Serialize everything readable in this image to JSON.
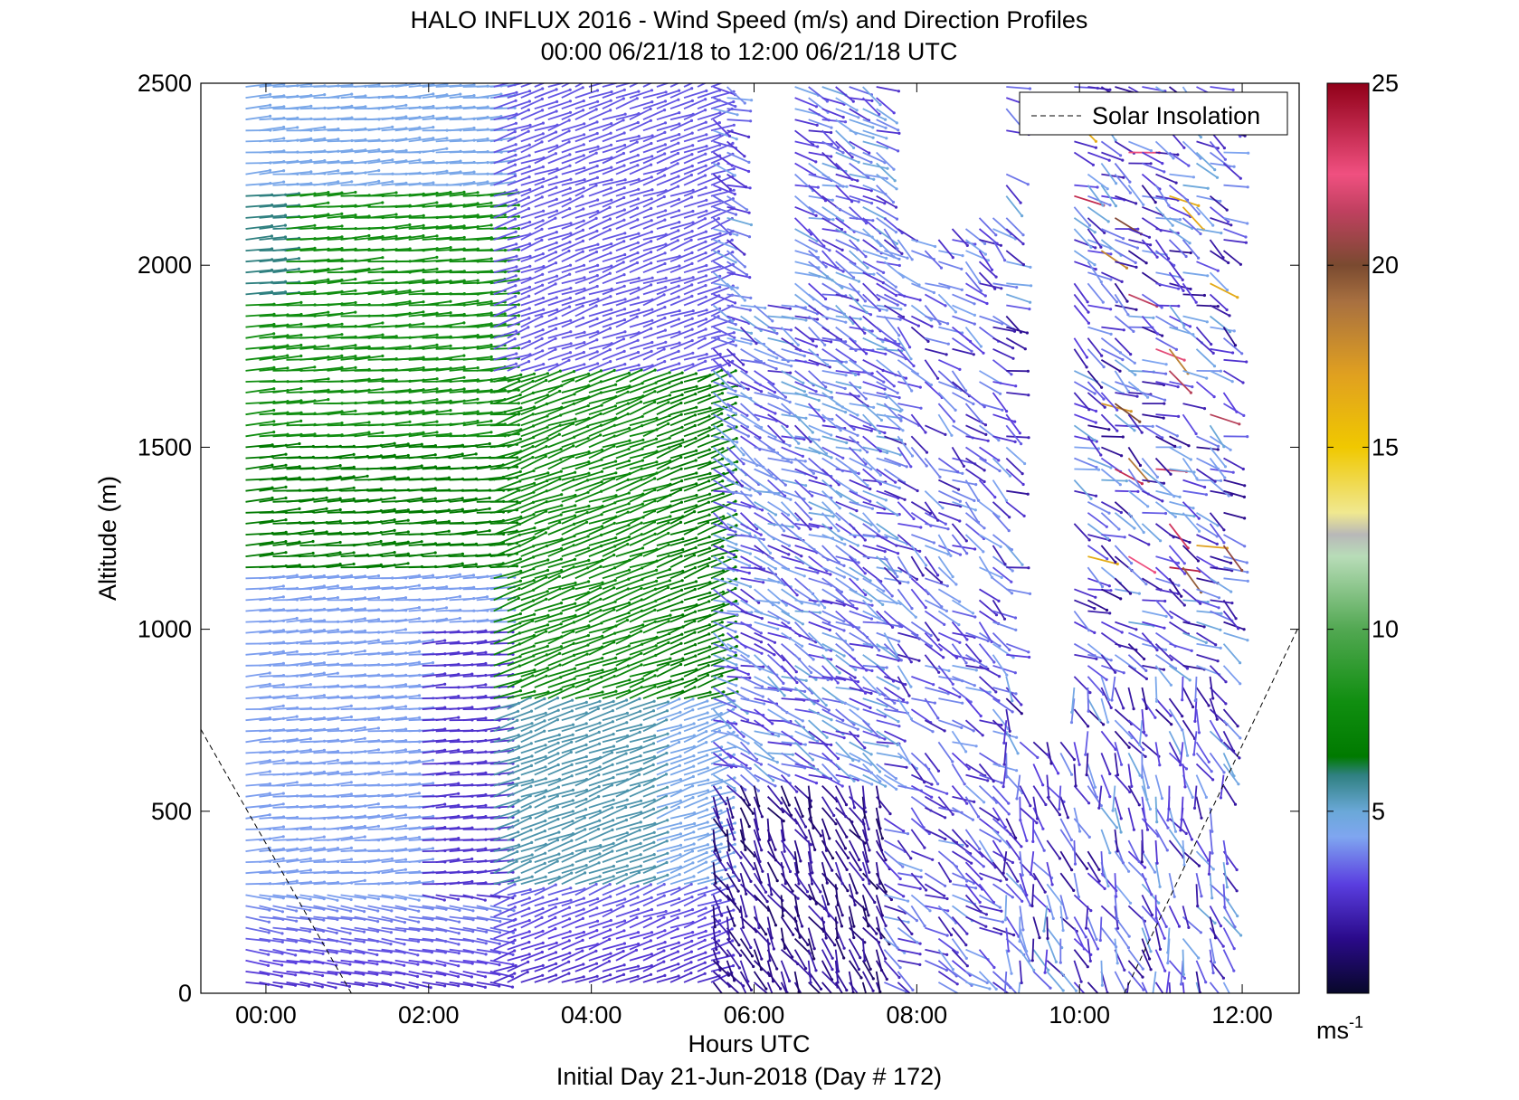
{
  "chart_data": {
    "type": "wind-barb-profile",
    "title": "HALO INFLUX 2016 - Wind Speed (m/s) and Direction Profiles",
    "subtitle": "00:00 06/21/18 to 12:00 06/21/18  UTC",
    "xlabel": "Hours UTC",
    "footer": "Initial Day 21-Jun-2018 (Day # 172)",
    "ylabel": "Altitude (m)",
    "xlim": [
      -0.8,
      12.7
    ],
    "ylim": [
      0,
      2500
    ],
    "x_ticks": [
      0,
      2,
      4,
      6,
      8,
      10,
      12
    ],
    "x_tick_labels": [
      "00:00",
      "02:00",
      "04:00",
      "06:00",
      "08:00",
      "10:00",
      "12:00"
    ],
    "y_ticks": [
      0,
      500,
      1000,
      1500,
      2000,
      2500
    ],
    "y_tick_labels": [
      "0",
      "500",
      "1000",
      "1500",
      "2000",
      "2500"
    ],
    "colorbar": {
      "range": [
        0,
        25
      ],
      "ticks": [
        5,
        10,
        15,
        20,
        25
      ],
      "tick_labels": [
        "5",
        "10",
        "15",
        "20",
        "25"
      ],
      "unit_label": "ms",
      "unit_exponent": "-1",
      "stops": [
        {
          "v": 0,
          "c": "#08082a"
        },
        {
          "v": 1.5,
          "c": "#2a0a8a"
        },
        {
          "v": 3,
          "c": "#5a3ee0"
        },
        {
          "v": 4.3,
          "c": "#7fa6f0"
        },
        {
          "v": 5,
          "c": "#6aa8d8"
        },
        {
          "v": 6,
          "c": "#2f8080"
        },
        {
          "v": 6.5,
          "c": "#007a00"
        },
        {
          "v": 8,
          "c": "#108e10"
        },
        {
          "v": 10,
          "c": "#52a852"
        },
        {
          "v": 12,
          "c": "#b8dcb8"
        },
        {
          "v": 12.6,
          "c": "#b8b8b8"
        },
        {
          "v": 13.2,
          "c": "#f0e890"
        },
        {
          "v": 15,
          "c": "#f0c800"
        },
        {
          "v": 17,
          "c": "#e0a020"
        },
        {
          "v": 19,
          "c": "#a87040"
        },
        {
          "v": 20,
          "c": "#7a4a30"
        },
        {
          "v": 21.5,
          "c": "#c04060"
        },
        {
          "v": 22.5,
          "c": "#f05080"
        },
        {
          "v": 25,
          "c": "#900018"
        }
      ]
    },
    "legend": {
      "label": "Solar Insolation",
      "position": "top-right",
      "style": "dashed"
    },
    "solar_insolation": [
      {
        "x": -0.8,
        "y": 725
      },
      {
        "x": 1.05,
        "y": 0
      },
      {
        "x": 10.55,
        "y": 0
      },
      {
        "x": 12.7,
        "y": 1010
      }
    ],
    "profiles": {
      "time_step_h": 0.167,
      "altitude_step_m": 30,
      "columns": [
        {
          "t0": -0.25,
          "t1": 2.8,
          "top": 2500,
          "desc": "continuous, light blue/green aloft, purple near surface"
        },
        {
          "t0": 2.8,
          "t1": 5.5,
          "top": 2500,
          "desc": "green/blue mid-levels, purple aloft"
        },
        {
          "t0": 5.5,
          "t1": 7.6,
          "top": 2500,
          "desc": "gap aloft 5.7-6.5, blue/purple"
        },
        {
          "t0": 7.6,
          "t1": 9.1,
          "top": 2150,
          "desc": "purple, sparse"
        },
        {
          "t0": 9.1,
          "t1": 11.85,
          "top": 2500,
          "desc": "mixed, red/brown scattered aloft"
        }
      ]
    }
  }
}
